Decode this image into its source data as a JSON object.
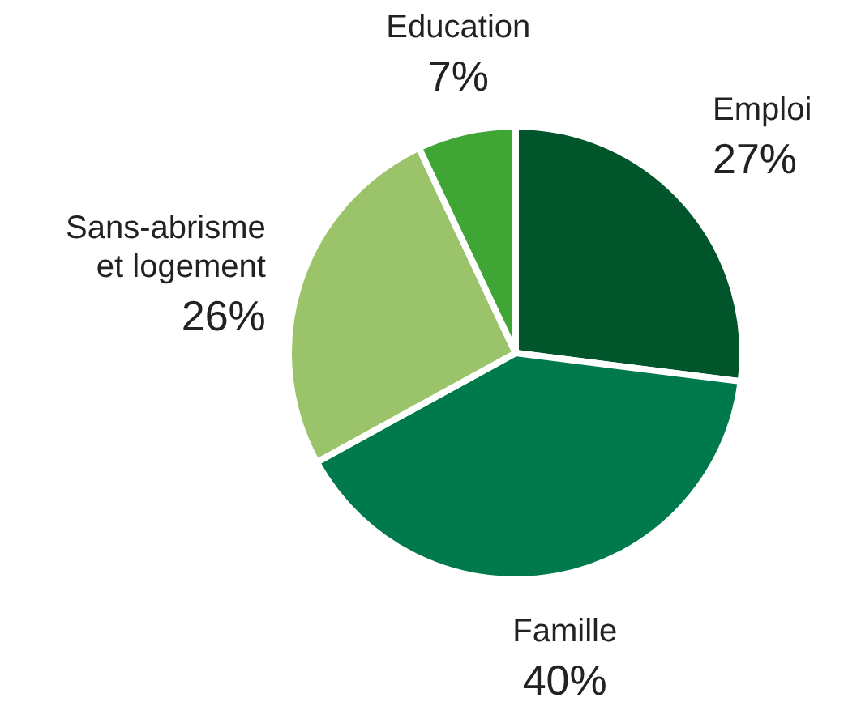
{
  "chart_data": {
    "type": "pie",
    "categories": [
      "Emploi",
      "Famille",
      "Sans-abrisme et logement",
      "Education"
    ],
    "values": [
      27,
      40,
      26,
      7
    ],
    "colors": [
      "#00552a",
      "#007a4d",
      "#9bc46a",
      "#3fa535"
    ],
    "value_labels": [
      "27%",
      "40%",
      "26%",
      "7%"
    ]
  }
}
